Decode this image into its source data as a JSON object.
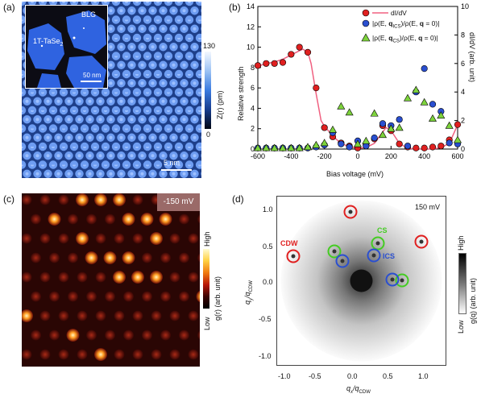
{
  "panel_a": {
    "label": "(a)",
    "inset": {
      "blg": "BLG",
      "tase": "1T-TaSe",
      "tase_sub": "2",
      "scale": "50 nm"
    },
    "scale": "5 nm",
    "colorbar": {
      "max": "130",
      "min": "0",
      "title": "Z(r) (pm)"
    }
  },
  "panel_b": {
    "label": "(b)",
    "chart_data": {
      "type": "scatter",
      "xlabel": "Bias voltage (mV)",
      "ylabel_left": "Relative strength",
      "ylabel_right": "dI/dV (arb. unit)",
      "xlim": [
        -600,
        600
      ],
      "ylim_left": [
        0,
        14
      ],
      "ylim_right": [
        0,
        10
      ],
      "x_ticks": [
        -600,
        -400,
        -200,
        0,
        200,
        400,
        600
      ],
      "y_ticks_left": [
        0,
        2,
        4,
        6,
        8,
        10,
        12,
        14
      ],
      "y_ticks_right": [
        0,
        2,
        4,
        6,
        8,
        10
      ],
      "legend": [
        "dI/dV",
        "|ρ(E, q_ICS)/ρ(E, q = 0)|",
        "|ρ(E, q_CS)/ρ(E, q = 0)|"
      ],
      "legend_display": {
        "l1": "dI/dV",
        "l2a": "|ρ(E, ",
        "l2b": "q",
        "l2c": "ICS",
        "l2d": ")/ρ(E, ",
        "l2e": "q",
        "l2f": " = 0)|",
        "l3a": "|ρ(E, ",
        "l3b": "q",
        "l3c": "CS",
        "l3d": ")/ρ(E, ",
        "l3e": "q",
        "l3f": " = 0)|"
      },
      "series": [
        {
          "name": "dI/dV",
          "marker": "circle",
          "color": "#e02020",
          "x": [
            -600,
            -550,
            -500,
            -450,
            -400,
            -350,
            -300,
            -250,
            -200,
            -150,
            -100,
            -50,
            0,
            50,
            100,
            150,
            200,
            250,
            300,
            350,
            400,
            450,
            500,
            550,
            600
          ],
          "y": [
            8.2,
            8.4,
            8.4,
            8.5,
            9.3,
            10.0,
            9.5,
            6.0,
            2.1,
            1.2,
            0.6,
            0.3,
            0.1,
            0.4,
            1.0,
            2.3,
            1.8,
            0.5,
            0.2,
            0.1,
            0.1,
            0.2,
            0.3,
            0.9,
            2.4
          ]
        },
        {
          "name": "|ρ(E, q_ICS)/ρ(E, q = 0)|",
          "marker": "circle",
          "color": "#2a4fd0",
          "x": [
            -600,
            -550,
            -500,
            -450,
            -400,
            -350,
            -300,
            -250,
            -200,
            -150,
            -100,
            -50,
            0,
            50,
            100,
            150,
            200,
            250,
            300,
            350,
            400,
            450,
            500,
            550,
            600
          ],
          "y": [
            0.1,
            0.1,
            0.1,
            0.1,
            0.1,
            0.1,
            0.1,
            0.2,
            0.4,
            1.6,
            0.5,
            0.2,
            0.8,
            0.3,
            1.1,
            2.5,
            2.3,
            2.9,
            0.3,
            5.6,
            7.9,
            4.4,
            3.7,
            0.6,
            0.5
          ]
        },
        {
          "name": "|ρ(E, q_CS)/ρ(E, q = 0)|",
          "marker": "triangle",
          "color": "#7dd33c",
          "x": [
            -600,
            -550,
            -500,
            -450,
            -400,
            -350,
            -300,
            -250,
            -200,
            -150,
            -100,
            -50,
            0,
            50,
            100,
            150,
            200,
            250,
            300,
            350,
            400,
            450,
            500,
            550,
            600
          ],
          "y": [
            0.1,
            0.1,
            0.1,
            0.1,
            0.1,
            0.1,
            0.2,
            0.4,
            0.6,
            1.9,
            4.2,
            3.6,
            0.5,
            0.8,
            3.5,
            1.4,
            2.0,
            2.1,
            5.0,
            5.8,
            4.6,
            3.0,
            3.3,
            2.3,
            0.9
          ]
        }
      ],
      "line": {
        "name": "dI/dV",
        "color": "#f06080",
        "x": [
          -600,
          -550,
          -500,
          -450,
          -400,
          -350,
          -330,
          -300,
          -280,
          -250,
          -220,
          -200,
          -170,
          -150,
          -100,
          -50,
          0,
          50,
          100,
          150,
          170,
          200,
          250,
          300,
          350,
          400,
          450,
          500,
          550,
          600
        ],
        "y": [
          5.8,
          6.0,
          6.1,
          6.3,
          6.6,
          6.9,
          7.0,
          6.8,
          6.0,
          3.9,
          2.0,
          1.6,
          1.2,
          0.9,
          0.4,
          0.15,
          0.05,
          0.1,
          0.4,
          1.2,
          1.5,
          1.3,
          0.4,
          0.05,
          0.0,
          0.0,
          0.0,
          0.1,
          0.4,
          1.7
        ]
      }
    }
  },
  "panel_c": {
    "label": "(c)",
    "bias": "-150 mV",
    "colorbar": {
      "high": "High",
      "low": "Low",
      "title": "g(r) (arb. unit)"
    }
  },
  "panel_d": {
    "label": "(d)",
    "bias": "150 mV",
    "tags": {
      "cdw": "CDW",
      "cs": "CS",
      "ics": "ICS"
    },
    "colors": {
      "cdw": "#e02020",
      "cs": "#44cc22",
      "ics": "#2a4fd0"
    },
    "x_ticks": [
      "-1.0",
      "-0.5",
      "0.0",
      "0.5",
      "1.0"
    ],
    "y_ticks": [
      "1.0",
      "0.5",
      "0.0",
      "-0.5",
      "-1.0"
    ],
    "xlabel_main": "q",
    "xlabel_sub": "x",
    "xlabel_den": "/q",
    "xlabel_densub": "CDW",
    "ylabel_main": "q",
    "ylabel_sub": "y",
    "ylabel_den": "/q",
    "ylabel_densub": "CDW",
    "colorbar": {
      "high": "High",
      "low": "Low",
      "title": "g(q) (arb. unit)"
    }
  }
}
